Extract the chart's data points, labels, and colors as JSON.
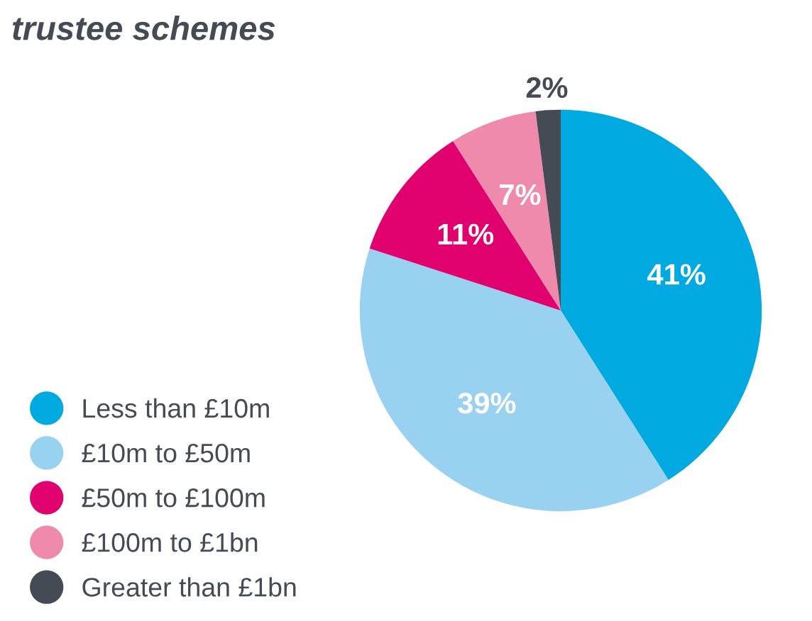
{
  "chart_data": {
    "type": "pie",
    "title": "trustee schemes",
    "categories": [
      "Less than £10m",
      "£10m to £50m",
      "£50m to £100m",
      "£100m to £1bn",
      "Greater than £1bn"
    ],
    "values": [
      41,
      39,
      11,
      7,
      2
    ],
    "colors": [
      "#00a9e0",
      "#99d1f1",
      "#e0006e",
      "#f08aad",
      "#454b54"
    ],
    "value_labels": [
      "41%",
      "39%",
      "11%",
      "7%",
      "2%"
    ],
    "legend": "bottom left"
  }
}
